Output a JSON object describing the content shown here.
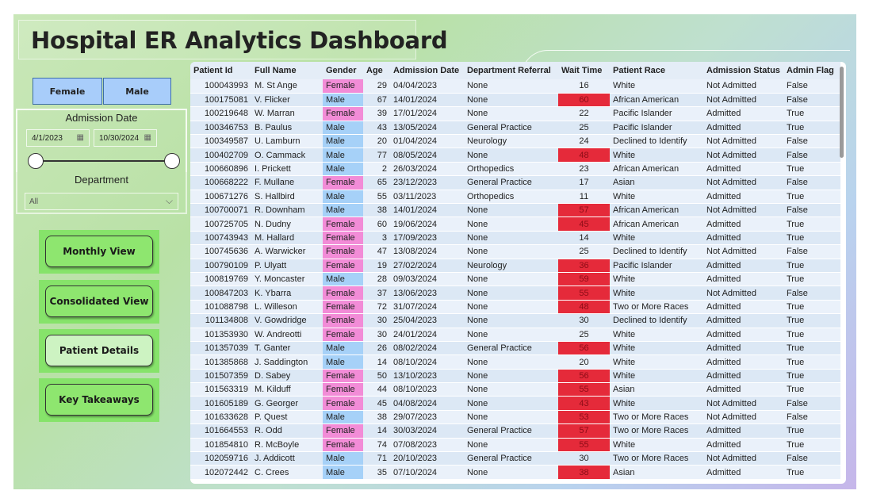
{
  "title": "Hospital ER Analytics Dashboard",
  "gender_filter": {
    "female": "Female",
    "male": "Male"
  },
  "admission_date": {
    "label": "Admission Date",
    "start": "4/1/2023",
    "end": "10/30/2024"
  },
  "department": {
    "label": "Department",
    "selected": "All"
  },
  "nav": {
    "monthly": "Monthly View",
    "consolidated": "Consolidated View",
    "patient": "Patient Details",
    "takeaways": "Key Takeaways"
  },
  "icons": {
    "calendar": "calendar-icon",
    "dropdown": "chevron-down-icon"
  },
  "colors": {
    "female": "#f28cd7",
    "male": "#a6d1f8",
    "long_wait": "#e52a3a",
    "nav_green": "#86e36a"
  },
  "table": {
    "headers": [
      "Patient Id",
      "Full Name",
      "Gender",
      "Age",
      "Admission Date",
      "Department Referral",
      "Wait Time",
      "Patient Race",
      "Admission Status",
      "Admin Flag"
    ],
    "rows": [
      [
        "100043993",
        "M. St Ange",
        "Female",
        "29",
        "04/04/2023",
        "None",
        "16",
        "White",
        "Not Admitted",
        "False"
      ],
      [
        "100175081",
        "V. Flicker",
        "Male",
        "67",
        "14/01/2024",
        "None",
        "60",
        "African American",
        "Not Admitted",
        "False"
      ],
      [
        "100219648",
        "W. Marran",
        "Female",
        "39",
        "17/01/2024",
        "None",
        "22",
        "Pacific Islander",
        "Admitted",
        "True"
      ],
      [
        "100346753",
        "B. Paulus",
        "Male",
        "43",
        "13/05/2024",
        "General Practice",
        "25",
        "Pacific Islander",
        "Admitted",
        "True"
      ],
      [
        "100349587",
        "U. Lamburn",
        "Male",
        "20",
        "01/04/2024",
        "Neurology",
        "24",
        "Declined to Identify",
        "Not Admitted",
        "False"
      ],
      [
        "100402709",
        "O. Cammack",
        "Male",
        "77",
        "08/05/2024",
        "None",
        "48",
        "White",
        "Not Admitted",
        "False"
      ],
      [
        "100660896",
        "I. Prickett",
        "Male",
        "2",
        "26/03/2024",
        "Orthopedics",
        "23",
        "African American",
        "Admitted",
        "True"
      ],
      [
        "100668222",
        "F. Mullane",
        "Female",
        "65",
        "23/12/2023",
        "General Practice",
        "17",
        "Asian",
        "Not Admitted",
        "False"
      ],
      [
        "100671276",
        "S. Hallbird",
        "Male",
        "55",
        "03/11/2023",
        "Orthopedics",
        "11",
        "White",
        "Admitted",
        "True"
      ],
      [
        "100700071",
        "R. Downham",
        "Male",
        "38",
        "14/01/2024",
        "None",
        "57",
        "African American",
        "Not Admitted",
        "False"
      ],
      [
        "100725705",
        "N. Dudny",
        "Female",
        "60",
        "19/06/2024",
        "None",
        "45",
        "African American",
        "Admitted",
        "True"
      ],
      [
        "100743943",
        "M. Hallard",
        "Female",
        "3",
        "17/09/2023",
        "None",
        "14",
        "White",
        "Admitted",
        "True"
      ],
      [
        "100745636",
        "A. Warwicker",
        "Female",
        "47",
        "13/08/2024",
        "None",
        "25",
        "Declined to Identify",
        "Not Admitted",
        "False"
      ],
      [
        "100790109",
        "P. Ulyatt",
        "Female",
        "19",
        "27/02/2024",
        "Neurology",
        "36",
        "Pacific Islander",
        "Admitted",
        "True"
      ],
      [
        "100819769",
        "Y. Moncaster",
        "Male",
        "28",
        "09/03/2024",
        "None",
        "59",
        "White",
        "Admitted",
        "True"
      ],
      [
        "100847203",
        "K. Ybarra",
        "Female",
        "37",
        "13/06/2023",
        "None",
        "55",
        "White",
        "Not Admitted",
        "False"
      ],
      [
        "101088798",
        "L. Willeson",
        "Female",
        "72",
        "31/07/2024",
        "None",
        "48",
        "Two or More Races",
        "Admitted",
        "True"
      ],
      [
        "101134808",
        "V. Gowdridge",
        "Female",
        "30",
        "25/04/2023",
        "None",
        "30",
        "Declined to Identify",
        "Admitted",
        "True"
      ],
      [
        "101353930",
        "W. Andreotti",
        "Female",
        "30",
        "24/01/2024",
        "None",
        "25",
        "White",
        "Admitted",
        "True"
      ],
      [
        "101357039",
        "T. Ganter",
        "Male",
        "26",
        "08/02/2024",
        "General Practice",
        "56",
        "White",
        "Admitted",
        "True"
      ],
      [
        "101385868",
        "J. Saddington",
        "Male",
        "14",
        "08/10/2024",
        "None",
        "20",
        "White",
        "Admitted",
        "True"
      ],
      [
        "101507359",
        "D. Sabey",
        "Female",
        "50",
        "13/10/2023",
        "None",
        "56",
        "White",
        "Admitted",
        "True"
      ],
      [
        "101563319",
        "M. Kilduff",
        "Female",
        "44",
        "08/10/2023",
        "None",
        "55",
        "Asian",
        "Admitted",
        "True"
      ],
      [
        "101605189",
        "G. Georger",
        "Female",
        "45",
        "04/08/2024",
        "None",
        "43",
        "White",
        "Not Admitted",
        "False"
      ],
      [
        "101633628",
        "P. Quest",
        "Male",
        "38",
        "29/07/2023",
        "None",
        "53",
        "Two or More Races",
        "Not Admitted",
        "False"
      ],
      [
        "101664553",
        "R. Odd",
        "Female",
        "14",
        "30/03/2024",
        "General Practice",
        "57",
        "Two or More Races",
        "Admitted",
        "True"
      ],
      [
        "101854810",
        "R. McBoyle",
        "Female",
        "74",
        "07/08/2023",
        "None",
        "55",
        "White",
        "Admitted",
        "True"
      ],
      [
        "102059716",
        "J. Addicott",
        "Male",
        "71",
        "20/10/2023",
        "General Practice",
        "30",
        "Two or More Races",
        "Not Admitted",
        "False"
      ],
      [
        "102072442",
        "C. Crees",
        "Male",
        "35",
        "07/10/2024",
        "None",
        "38",
        "Asian",
        "Admitted",
        "True"
      ]
    ]
  }
}
